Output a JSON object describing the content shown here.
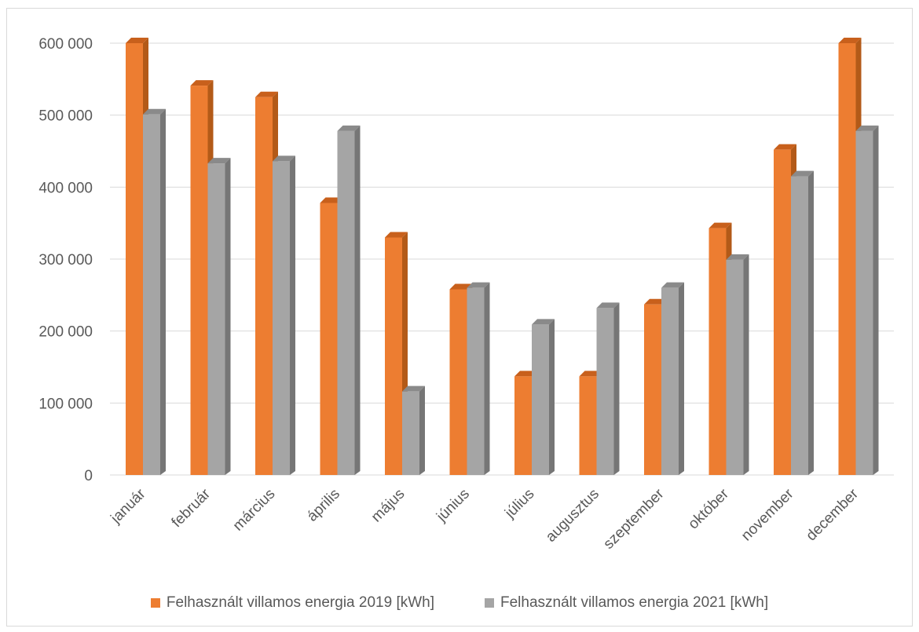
{
  "chart_data": {
    "type": "bar",
    "style": "3d-clustered-column",
    "categories": [
      "január",
      "február",
      "március",
      "április",
      "május",
      "június",
      "július",
      "augusztus",
      "szeptember",
      "október",
      "november",
      "december"
    ],
    "series": [
      {
        "name": "Felhasznált villamos energia 2019 [kWh]",
        "color": "#ED7D31",
        "side_color": "#B35A18",
        "top_color": "#C8601C",
        "values": [
          600000,
          541000,
          525000,
          378000,
          330000,
          258000,
          137000,
          137000,
          237000,
          343000,
          452000,
          600000
        ]
      },
      {
        "name": "Felhasznált villamos energia 2021 [kWh]",
        "color": "#A5A5A5",
        "side_color": "#767676",
        "top_color": "#8A8A8A",
        "values": [
          501000,
          433000,
          436000,
          478000,
          116000,
          260000,
          209000,
          232000,
          260000,
          299000,
          415000,
          478000
        ]
      }
    ],
    "yticks": [
      "0",
      "100 000",
      "200 000",
      "300 000",
      "400 000",
      "500 000",
      "600 000"
    ],
    "ylim": [
      0,
      600000
    ],
    "grid": true,
    "legend_position": "bottom"
  }
}
